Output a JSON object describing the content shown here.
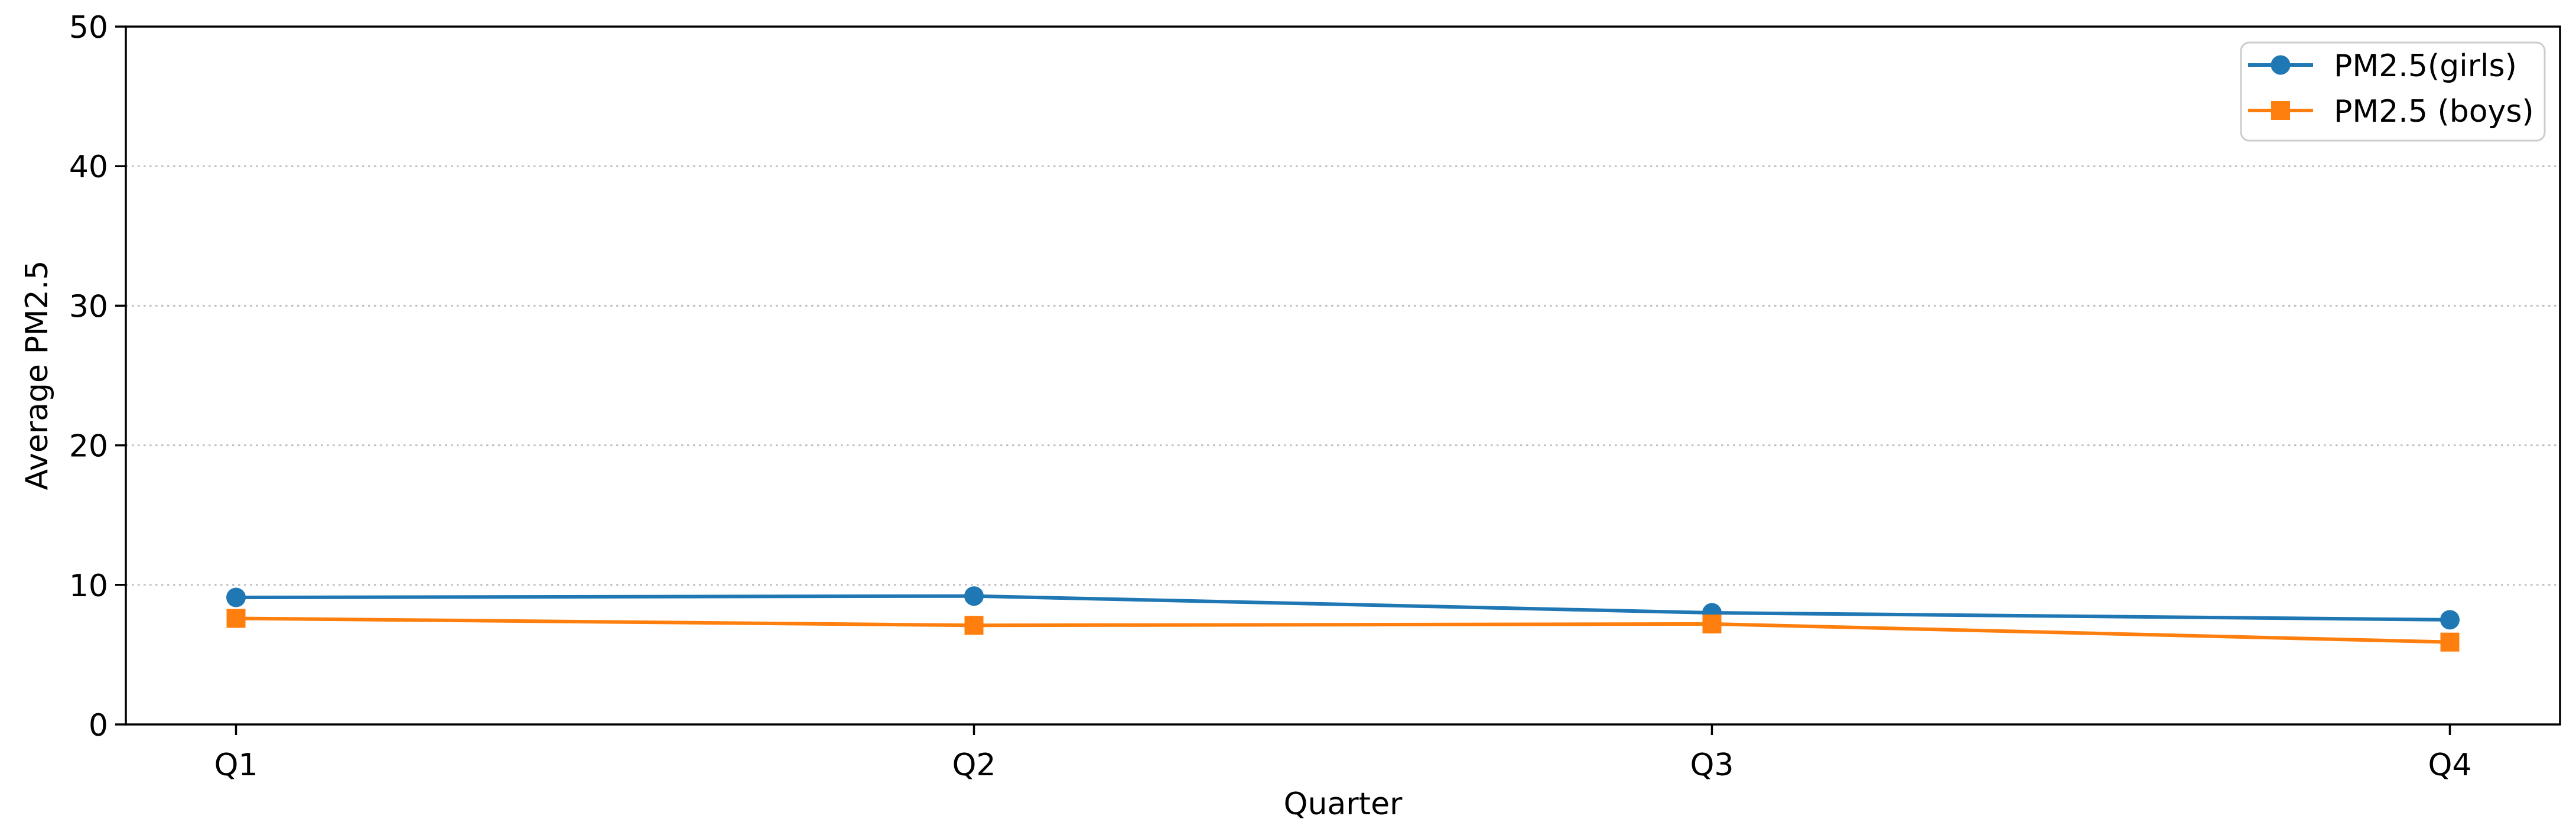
{
  "chart_data": {
    "type": "line",
    "title": "",
    "xlabel": "Quarter",
    "ylabel": "Average PM2.5",
    "categories": [
      "Q1",
      "Q2",
      "Q3",
      "Q4"
    ],
    "series": [
      {
        "name": "PM2.5(girls)",
        "color": "#1f77b4",
        "marker": "circle",
        "values": [
          9.1,
          9.2,
          8.0,
          7.5
        ]
      },
      {
        "name": "PM2.5 (boys)",
        "color": "#ff7f0e",
        "marker": "square",
        "values": [
          7.6,
          7.1,
          7.2,
          5.9
        ]
      }
    ],
    "ylim": [
      0,
      50
    ],
    "yticks": [
      0,
      10,
      20,
      30,
      40,
      50
    ],
    "grid": "horizontal-dotted",
    "legend_position": "upper right",
    "colors": {
      "axis": "#000000",
      "grid": "#bfbfbf",
      "legend_border": "#cccccc",
      "background": "#ffffff"
    }
  }
}
